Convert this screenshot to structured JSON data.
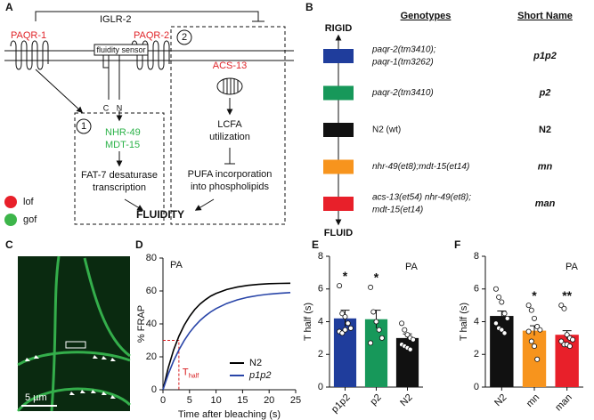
{
  "panel_a": {
    "letter": "A",
    "iglr2": "IGLR-2",
    "paqr1": "PAQR-1",
    "paqr2": "PAQR-2",
    "sensor": "fluidity sensor",
    "c_term": "C",
    "n_term": "N",
    "circle2": "2",
    "acs13": "ACS-13",
    "circle1": "1",
    "nhr49": "NHR-49",
    "mdt15": "MDT-15",
    "fat7_1": "FAT-7 desaturase",
    "fat7_2": "transcription",
    "lcfa_1": "LCFA",
    "lcfa_2": "utilization",
    "pufa_1": "PUFA incorporation",
    "pufa_2": "into phospholipids",
    "fluidity": "FLUIDITY",
    "lof": "lof",
    "gof": "gof"
  },
  "panel_b": {
    "letter": "B",
    "top": "RIGID",
    "bottom": "FLUID",
    "col1": "Genotypes",
    "col2": "Short Name",
    "rows": [
      {
        "genotype": [
          "paqr-2(tm3410);",
          "paqr-1(tm3262)"
        ],
        "short_name": "p1p2",
        "color": "#1f3d9c"
      },
      {
        "genotype": [
          "paqr-2(tm3410)"
        ],
        "short_name": "p2",
        "color": "#17985a"
      },
      {
        "genotype": [
          "N2 (wt)"
        ],
        "short_name": "N2",
        "color": "#111111"
      },
      {
        "genotype": [
          "nhr-49(et8);mdt-15(et14)"
        ],
        "short_name": "mn",
        "color": "#f7941d"
      },
      {
        "genotype": [
          "acs-13(et54) nhr-49(et8);",
          "mdt-15(et14)"
        ],
        "short_name": "man",
        "color": "#e8202a"
      }
    ]
  },
  "panel_c": {
    "letter": "C",
    "scale": "5 µm"
  },
  "chart_data": [
    {
      "type": "line",
      "panel": "D",
      "annotation": "PA",
      "x_label": "Time after bleaching (s)",
      "y_label": "% FRAP",
      "x": [
        0,
        1,
        2,
        3,
        4,
        5,
        6,
        7,
        8,
        9,
        10,
        12,
        14,
        16,
        18,
        20,
        22,
        24
      ],
      "series": [
        {
          "name": "N2",
          "color": "#000000",
          "values": [
            0,
            13.4,
            24.1,
            32.5,
            39.2,
            44.5,
            48.8,
            52.1,
            54.7,
            56.9,
            58.5,
            60.9,
            62.4,
            63.4,
            64,
            64.4,
            64.6,
            64.7
          ]
        },
        {
          "name": "p1p2",
          "color": "#2945a8",
          "values": [
            0,
            9.5,
            17.5,
            24.2,
            29.9,
            34.7,
            38.7,
            42.1,
            44.9,
            47.3,
            49.3,
            52.4,
            54.6,
            56.2,
            57.3,
            58.1,
            58.6,
            59
          ]
        }
      ],
      "thalf": {
        "x": 3,
        "y": 30,
        "label": "T",
        "sub": "half",
        "color": "#d7191c"
      },
      "xlim": [
        0,
        25
      ],
      "xticks": [
        0,
        5,
        10,
        15,
        20,
        25
      ],
      "ylim": [
        0,
        80
      ],
      "yticks": [
        0,
        20,
        40,
        60,
        80
      ]
    },
    {
      "type": "bar",
      "panel": "E",
      "annotation": "PA",
      "y_label": "T half (s)",
      "categories": [
        "p1p2",
        "p2",
        "N2"
      ],
      "values": [
        4.2,
        4.15,
        3.0
      ],
      "errors": [
        0.5,
        0.55,
        0.25
      ],
      "colors": [
        "#1f3d9c",
        "#17985a",
        "#111111"
      ],
      "stars": [
        "*",
        "*",
        null
      ],
      "points": [
        [
          6.2,
          4.5,
          4.3,
          3.9,
          3.6,
          3.4,
          3.3,
          3.5
        ],
        [
          6.1,
          4.6,
          4.0,
          3.5,
          3.0,
          2.7
        ],
        [
          3.9,
          3.5,
          3.2,
          3.0,
          2.9,
          2.6,
          2.5,
          2.4,
          2.3
        ]
      ],
      "ylim": [
        0,
        8
      ],
      "yticks": [
        0,
        2,
        4,
        6,
        8
      ]
    },
    {
      "type": "bar",
      "panel": "F",
      "annotation": "PA",
      "y_label": "T half (s)",
      "categories": [
        "N2",
        "mn",
        "man"
      ],
      "values": [
        4.35,
        3.45,
        3.2
      ],
      "errors": [
        0.3,
        0.3,
        0.25
      ],
      "colors": [
        "#111111",
        "#f7941d",
        "#e8202a"
      ],
      "stars": [
        null,
        "*",
        "**"
      ],
      "points": [
        [
          6.0,
          5.5,
          5.2,
          4.5,
          4.2,
          3.9,
          3.6,
          3.5,
          3.3
        ],
        [
          5.0,
          4.7,
          4.2,
          3.7,
          3.5,
          3.4,
          2.8,
          2.5,
          1.7
        ],
        [
          5.0,
          4.8,
          3.2,
          3.0,
          2.9,
          2.8,
          2.6,
          2.6,
          2.5
        ]
      ],
      "ylim": [
        0,
        8
      ],
      "yticks": [
        0,
        2,
        4,
        6,
        8
      ]
    }
  ]
}
